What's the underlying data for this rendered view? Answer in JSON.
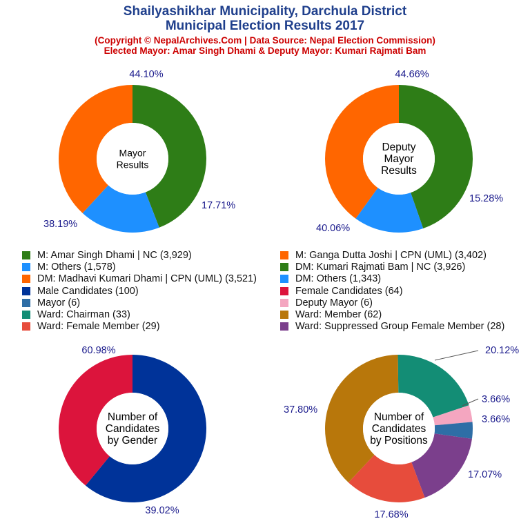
{
  "header": {
    "title_line1": "Shailyashikhar Municipality, Darchula District",
    "title_line2": "Municipal Election Results 2017",
    "subtitle_line1": "(Copyright © NepalArchives.Com | Data Source: Nepal Election Commission)",
    "subtitle_line2": "Elected Mayor: Amar Singh Dhami & Deputy Mayor: Kumari Rajmati Bam"
  },
  "chart_data": [
    {
      "type": "pie",
      "center_label": [
        "Mayor",
        "Results"
      ],
      "slices": [
        {
          "label": "M: Amar Singh Dhami | NC",
          "value": 3929,
          "percent_label": "44.10%",
          "color": "#2e7d17"
        },
        {
          "label": "M: Others",
          "value": 1578,
          "percent_label": "17.71%",
          "color": "#1e90ff"
        },
        {
          "label": "M: Ganga Dutta Joshi | CPN (UML)",
          "value": 3402,
          "percent_label": "38.19%",
          "color": "#ff6600"
        }
      ]
    },
    {
      "type": "pie",
      "center_label": [
        "Deputy",
        "Mayor",
        "Results"
      ],
      "slices": [
        {
          "label": "DM: Kumari Rajmati Bam | NC",
          "value": 3926,
          "percent_label": "44.66%",
          "color": "#2e7d17"
        },
        {
          "label": "DM: Others",
          "value": 1343,
          "percent_label": "15.28%",
          "color": "#1e90ff"
        },
        {
          "label": "DM: Madhavi Kumari Dhami | CPN (UML)",
          "value": 3521,
          "percent_label": "40.06%",
          "color": "#ff6600"
        }
      ]
    },
    {
      "type": "pie",
      "center_label": [
        "Number of",
        "Candidates",
        "by Gender"
      ],
      "slices": [
        {
          "label": "Male Candidates",
          "value": 100,
          "percent_label": "60.98%",
          "color": "#003399"
        },
        {
          "label": "Female Candidates",
          "value": 64,
          "percent_label": "39.02%",
          "color": "#dc143c"
        }
      ]
    },
    {
      "type": "pie",
      "center_label": [
        "Number of",
        "Candidates",
        "by Positions"
      ],
      "slices": [
        {
          "label": "Ward: Chairman",
          "value": 33,
          "percent_label": "20.12%",
          "color": "#138d75"
        },
        {
          "label": "Deputy Mayor",
          "value": 6,
          "percent_label": "3.66%",
          "color": "#f4a6c0"
        },
        {
          "label": "Mayor",
          "value": 6,
          "percent_label": "3.66%",
          "color": "#2e6ea6"
        },
        {
          "label": "Ward: Suppressed Group Female Member",
          "value": 28,
          "percent_label": "17.07%",
          "color": "#7b3f8c"
        },
        {
          "label": "Ward: Female Member",
          "value": 29,
          "percent_label": "17.68%",
          "color": "#e74c3c"
        },
        {
          "label": "Ward: Member",
          "value": 62,
          "percent_label": "37.80%",
          "color": "#b8770b"
        }
      ]
    }
  ],
  "legend": [
    {
      "text": "M: Amar Singh Dhami | NC (3,929)",
      "color": "#2e7d17"
    },
    {
      "text": "M: Ganga Dutta Joshi | CPN (UML) (3,402)",
      "color": "#ff6600"
    },
    {
      "text": "M: Others (1,578)",
      "color": "#1e90ff"
    },
    {
      "text": "DM: Kumari Rajmati Bam | NC (3,926)",
      "color": "#2e7d17"
    },
    {
      "text": "DM: Madhavi Kumari Dhami | CPN (UML) (3,521)",
      "color": "#ff6600"
    },
    {
      "text": "DM: Others (1,343)",
      "color": "#1e90ff"
    },
    {
      "text": "Male Candidates (100)",
      "color": "#003399"
    },
    {
      "text": "Female Candidates (64)",
      "color": "#dc143c"
    },
    {
      "text": "Mayor (6)",
      "color": "#2e6ea6"
    },
    {
      "text": "Deputy Mayor (6)",
      "color": "#f4a6c0"
    },
    {
      "text": "Ward: Chairman (33)",
      "color": "#138d75"
    },
    {
      "text": "Ward: Member (62)",
      "color": "#b8770b"
    },
    {
      "text": "Ward: Female Member (29)",
      "color": "#e74c3c"
    },
    {
      "text": "Ward: Suppressed Group Female Member (28)",
      "color": "#7b3f8c"
    }
  ]
}
